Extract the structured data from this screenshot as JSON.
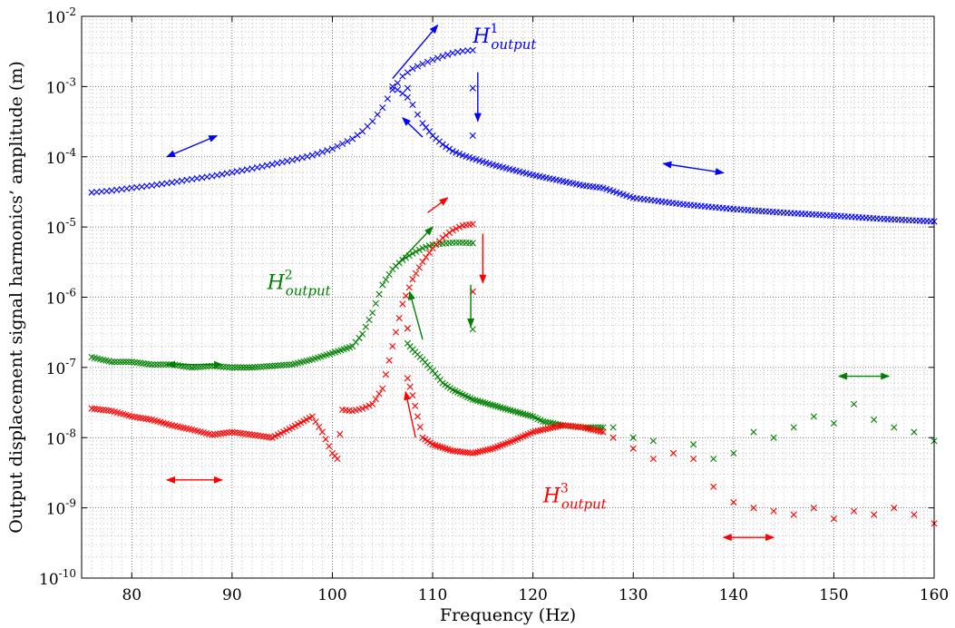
{
  "chart_data": {
    "type": "scatter",
    "title": "",
    "xlabel": "Frequency (Hz)",
    "ylabel": "Output displacement signal harmonics’ amplitude (m)",
    "xlim": [
      75,
      160
    ],
    "ylim": [
      1e-10,
      0.01
    ],
    "y_scale": "log",
    "grid": true,
    "marker": "x",
    "x_ticks": [
      80,
      90,
      100,
      110,
      120,
      130,
      140,
      150,
      160
    ],
    "x_tick_labels": [
      "80",
      "90",
      "100",
      "110",
      "120",
      "130",
      "140",
      "150",
      "160"
    ],
    "y_ticks": [
      1e-10,
      1e-09,
      1e-08,
      1e-07,
      1e-06,
      1e-05,
      0.0001,
      0.001,
      0.01
    ],
    "y_tick_labels": [
      {
        "base": "10",
        "exp": "-10"
      },
      {
        "base": "10",
        "exp": "-9"
      },
      {
        "base": "10",
        "exp": "-8"
      },
      {
        "base": "10",
        "exp": "-7"
      },
      {
        "base": "10",
        "exp": "-6"
      },
      {
        "base": "10",
        "exp": "-5"
      },
      {
        "base": "10",
        "exp": "-4"
      },
      {
        "base": "10",
        "exp": "-3"
      },
      {
        "base": "10",
        "exp": "-2"
      }
    ],
    "series": [
      {
        "harmonic": 1,
        "color": "#0000ff",
        "label": {
          "base": "H",
          "sup": "1",
          "sub": "output"
        },
        "up_sweep": [
          [
            76,
            3.1e-05
          ],
          [
            78,
            3.3e-05
          ],
          [
            80,
            3.6e-05
          ],
          [
            82,
            3.9e-05
          ],
          [
            84,
            4.3e-05
          ],
          [
            86,
            4.8e-05
          ],
          [
            88,
            5.3e-05
          ],
          [
            90,
            6e-05
          ],
          [
            92,
            6.8e-05
          ],
          [
            94,
            7.8e-05
          ],
          [
            96,
            9e-05
          ],
          [
            98,
            0.000105
          ],
          [
            100,
            0.00013
          ],
          [
            102,
            0.00018
          ],
          [
            103,
            0.00023
          ],
          [
            104,
            0.00032
          ],
          [
            105,
            0.0005
          ],
          [
            106,
            0.0009
          ],
          [
            107,
            0.0014
          ],
          [
            108,
            0.0018
          ],
          [
            109,
            0.0021
          ],
          [
            110,
            0.0024
          ],
          [
            111,
            0.0027
          ],
          [
            112,
            0.003
          ],
          [
            113,
            0.0032
          ],
          [
            114,
            0.0033
          ]
        ],
        "down_sweep": [
          [
            160,
            1.2e-05
          ],
          [
            155,
            1.3e-05
          ],
          [
            150,
            1.45e-05
          ],
          [
            145,
            1.6e-05
          ],
          [
            140,
            1.8e-05
          ],
          [
            135,
            2.1e-05
          ],
          [
            130,
            2.6e-05
          ],
          [
            127,
            3.6e-05
          ],
          [
            125,
            3.9e-05
          ],
          [
            122,
            4.8e-05
          ],
          [
            120,
            5.5e-05
          ],
          [
            118,
            6.5e-05
          ],
          [
            116,
            7.7e-05
          ],
          [
            115,
            8.5e-05
          ],
          [
            113,
            0.000105
          ],
          [
            112,
            0.00012
          ],
          [
            111,
            0.00015
          ],
          [
            110,
            0.0002
          ],
          [
            109,
            0.0003
          ],
          [
            108.5,
            0.0004
          ],
          [
            108,
            0.00055
          ],
          [
            107.5,
            0.0007
          ],
          [
            107,
            0.0008
          ],
          [
            106.5,
            0.0009
          ],
          [
            106,
            0.001
          ]
        ],
        "isolated": [
          [
            107.5,
            0.00095
          ],
          [
            114,
            0.00095
          ],
          [
            114,
            0.0002
          ]
        ]
      },
      {
        "harmonic": 2,
        "color": "#008000",
        "label": {
          "base": "H",
          "sup": "2",
          "sub": "output"
        },
        "up_sweep": [
          [
            76,
            1.4e-07
          ],
          [
            78,
            1.2e-07
          ],
          [
            80,
            1.2e-07
          ],
          [
            82,
            1.1e-07
          ],
          [
            84,
            1.1e-07
          ],
          [
            86,
            1e-07
          ],
          [
            88,
            1.05e-07
          ],
          [
            90,
            1e-07
          ],
          [
            92,
            1e-07
          ],
          [
            94,
            1.05e-07
          ],
          [
            96,
            1.1e-07
          ],
          [
            98,
            1.3e-07
          ],
          [
            100,
            1.6e-07
          ],
          [
            102,
            2e-07
          ],
          [
            103,
            3e-07
          ],
          [
            104,
            6e-07
          ],
          [
            105,
            1.5e-06
          ],
          [
            106,
            2.5e-06
          ],
          [
            107,
            3.4e-06
          ],
          [
            108,
            4.2e-06
          ],
          [
            109,
            5e-06
          ],
          [
            110,
            5.6e-06
          ],
          [
            111,
            5.8e-06
          ],
          [
            112,
            6e-06
          ],
          [
            113,
            6e-06
          ],
          [
            114,
            5.9e-06
          ]
        ],
        "down_sweep": [
          [
            127,
            1.4e-08
          ],
          [
            125,
            1.4e-08
          ],
          [
            123,
            1.5e-08
          ],
          [
            121,
            1.7e-08
          ],
          [
            120,
            2e-08
          ],
          [
            118,
            2.4e-08
          ],
          [
            116,
            2.9e-08
          ],
          [
            114,
            3.5e-08
          ],
          [
            112,
            4.8e-08
          ],
          [
            111,
            6e-08
          ],
          [
            110,
            9e-08
          ],
          [
            109,
            1.3e-07
          ],
          [
            108,
            1.8e-07
          ],
          [
            107.5,
            2.2e-07
          ]
        ],
        "high_freq": [
          [
            128,
            1.4e-08
          ],
          [
            130,
            1e-08
          ],
          [
            132,
            9e-09
          ],
          [
            134,
            6e-09
          ],
          [
            136,
            8e-09
          ],
          [
            138,
            5e-09
          ],
          [
            140,
            6e-09
          ],
          [
            142,
            1.2e-08
          ],
          [
            144,
            1e-08
          ],
          [
            146,
            1.4e-08
          ],
          [
            148,
            2e-08
          ],
          [
            150,
            1.6e-08
          ],
          [
            152,
            3e-08
          ],
          [
            154,
            1.8e-08
          ],
          [
            156,
            1.4e-08
          ],
          [
            158,
            1.2e-08
          ],
          [
            160,
            9e-09
          ]
        ],
        "isolated": [
          [
            107.5,
            3.6e-07
          ],
          [
            114,
            3.5e-07
          ]
        ]
      },
      {
        "harmonic": 3,
        "color": "#ff0000",
        "label": {
          "base": "H",
          "sup": "3",
          "sub": "output"
        },
        "up_sweep": [
          [
            76,
            2.6e-08
          ],
          [
            78,
            2.4e-08
          ],
          [
            80,
            2e-08
          ],
          [
            82,
            1.8e-08
          ],
          [
            84,
            1.5e-08
          ],
          [
            86,
            1.3e-08
          ],
          [
            88,
            1.1e-08
          ],
          [
            90,
            1.2e-08
          ],
          [
            92,
            1.1e-08
          ],
          [
            94,
            1e-08
          ],
          [
            96,
            1.4e-08
          ],
          [
            98,
            2e-08
          ],
          [
            99,
            1.2e-08
          ],
          [
            100,
            6e-09
          ],
          [
            100.5,
            5e-09
          ],
          [
            101,
            2.5e-08
          ],
          [
            102,
            2.4e-08
          ],
          [
            103,
            2.6e-08
          ],
          [
            104,
            3e-08
          ],
          [
            105,
            5e-08
          ],
          [
            106,
            2e-07
          ],
          [
            107,
            8e-07
          ],
          [
            108,
            1.8e-06
          ],
          [
            109,
            3.2e-06
          ],
          [
            110,
            5e-06
          ],
          [
            111,
            7e-06
          ],
          [
            112,
            9e-06
          ],
          [
            113,
            1.05e-05
          ],
          [
            114,
            1.1e-05
          ]
        ],
        "down_sweep": [
          [
            127,
            1.2e-08
          ],
          [
            125,
            1.4e-08
          ],
          [
            123,
            1.5e-08
          ],
          [
            121,
            1.3e-08
          ],
          [
            120,
            1.2e-08
          ],
          [
            118,
            9e-09
          ],
          [
            116,
            7e-09
          ],
          [
            114,
            6e-09
          ],
          [
            112,
            6.5e-09
          ],
          [
            110,
            8e-09
          ],
          [
            109,
            1e-08
          ],
          [
            108.5,
            2e-08
          ],
          [
            108,
            4e-08
          ],
          [
            107.5,
            7e-08
          ]
        ],
        "high_freq": [
          [
            128,
            1e-08
          ],
          [
            130,
            7e-09
          ],
          [
            132,
            5e-09
          ],
          [
            134,
            6e-09
          ],
          [
            136,
            5e-09
          ],
          [
            138,
            2e-09
          ],
          [
            140,
            1.2e-09
          ],
          [
            142,
            1e-09
          ],
          [
            144,
            9e-10
          ],
          [
            146,
            8e-10
          ],
          [
            148,
            1e-09
          ],
          [
            150,
            7e-10
          ],
          [
            152,
            9e-10
          ],
          [
            154,
            8e-10
          ],
          [
            156,
            1e-09
          ],
          [
            158,
            8e-10
          ],
          [
            160,
            6e-10
          ]
        ],
        "isolated": [
          [
            107.5,
            3.6e-07
          ],
          [
            114,
            1.2e-06
          ]
        ]
      }
    ]
  }
}
